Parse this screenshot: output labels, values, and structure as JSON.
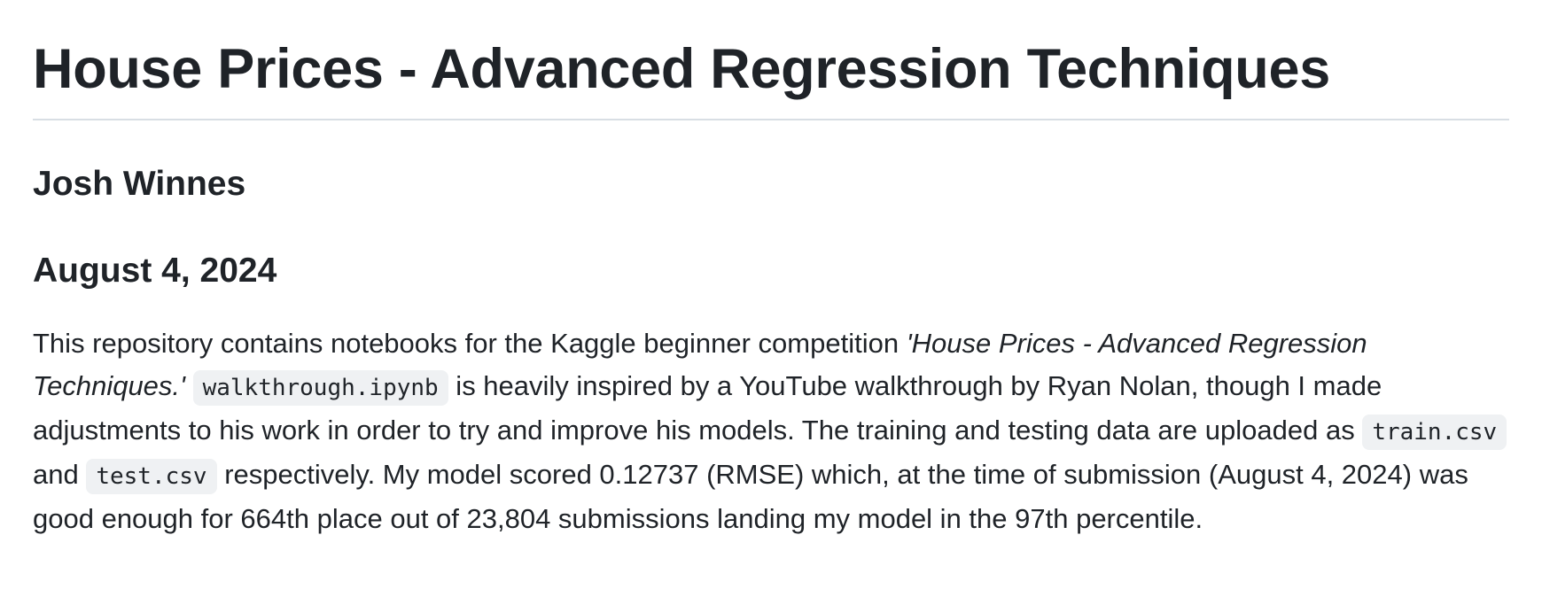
{
  "readme": {
    "title": "House Prices - Advanced Regression Techniques",
    "author": "Josh Winnes",
    "date": "August 4, 2024",
    "description": {
      "intro": "This repository contains notebooks for the Kaggle beginner competition ",
      "competition_name": "'House Prices - Advanced Regression Techniques.'",
      "code_notebook": "walkthrough.ipynb",
      "after_notebook": " is heavily inspired by a YouTube walkthrough by Ryan Nolan, though I made adjustments to his work in order to try and improve his models. The training and testing data are uploaded as ",
      "code_train": "train.csv",
      "and": " and ",
      "code_test": "test.csv",
      "closing": " respectively. My model scored 0.12737 (RMSE) which, at the time of submission (August 4, 2024) was good enough for 664th place out of 23,804 submissions landing my model in the 97th percentile."
    }
  }
}
